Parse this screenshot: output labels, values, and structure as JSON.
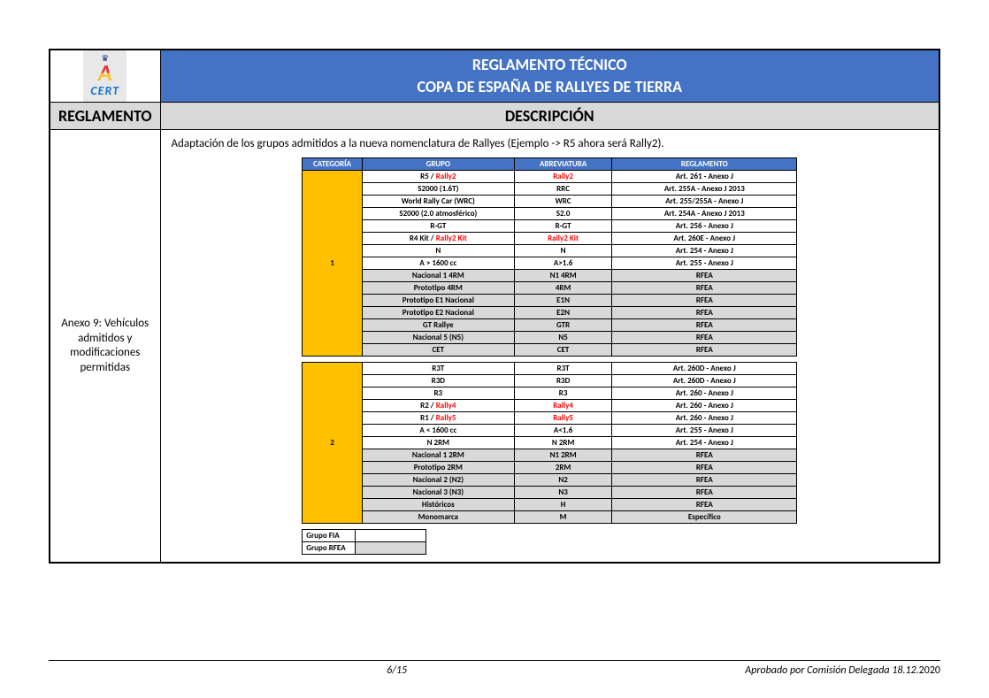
{
  "colors": {
    "header_bg": "#4472c4",
    "section_bg": "#d9d9d9",
    "cat_bg": "#ffc000",
    "shade_bg": "#d9d9d9",
    "red_text": "#ff0000",
    "border": "#000000",
    "white": "#ffffff"
  },
  "logo": {
    "crown": "♛",
    "letter": "A",
    "cert": "CERT"
  },
  "title_line1": "REGLAMENTO TÉCNICO",
  "title_line2": "COPA DE ESPAÑA DE RALLYES DE TIERRA",
  "col_reglamento": "REGLAMENTO",
  "col_descripcion": "DESCRIPCIÓN",
  "row_label": "Anexo 9: Vehículos admitidos y modificaciones permitidas",
  "intro": "Adaptación de los grupos admitidos a la nueva nomenclatura de Rallyes (Ejemplo -> R5 ahora será Rally2).",
  "inner_headers": {
    "categoria": "CATEGORÍA",
    "grupo": "GRUPO",
    "abreviatura": "ABREVIATURA",
    "reglamento": "REGLAMENTO"
  },
  "cat1": {
    "num": "1",
    "rows": [
      {
        "g": [
          "R5 / ",
          "Rally2"
        ],
        "a": "Rally2",
        "a_red": true,
        "r": "Art. 261 - Anexo J",
        "shade": false,
        "bold": true
      },
      {
        "g": [
          "S2000 (1.6T)"
        ],
        "a": "RRC",
        "r": "Art. 255A - Anexo J 2013",
        "shade": false,
        "bold": true
      },
      {
        "g": [
          "World Rally Car (WRC)"
        ],
        "a": "WRC",
        "r": "Art. 255/255A - Anexo J",
        "shade": false,
        "bold": true
      },
      {
        "g": [
          "S2000 (2.0 atmosférico)"
        ],
        "a": "S2.0",
        "r": "Art. 254A - Anexo J 2013",
        "shade": false,
        "bold": true
      },
      {
        "g": [
          "R-GT"
        ],
        "a": "R-GT",
        "r": "Art. 256 - Anexo J",
        "shade": false,
        "bold": true
      },
      {
        "g": [
          "R4 Kit / ",
          "Rally2 Kit"
        ],
        "a": "Rally2 Kit",
        "a_red": true,
        "r": "Art. 260E - Anexo J",
        "shade": false,
        "bold": true
      },
      {
        "g": [
          "N"
        ],
        "a": "N",
        "r": "Art. 254 - Anexo J",
        "shade": false,
        "bold": true
      },
      {
        "g": [
          "A > 1600 cc"
        ],
        "a": "A>1.6",
        "r": "Art. 255 - Anexo J",
        "shade": false,
        "bold": true
      },
      {
        "g": [
          "Nacional 1 4RM"
        ],
        "a": "N1 4RM",
        "r": "RFEA",
        "shade": true,
        "bold": true
      },
      {
        "g": [
          "Prototipo 4RM"
        ],
        "a": "4RM",
        "r": "RFEA",
        "shade": true,
        "bold": true
      },
      {
        "g": [
          "Prototipo E1 Nacional"
        ],
        "a": "E1N",
        "r": "RFEA",
        "shade": true,
        "bold": true
      },
      {
        "g": [
          "Prototipo E2 Nacional"
        ],
        "a": "E2N",
        "r": "RFEA",
        "shade": true,
        "bold": true
      },
      {
        "g": [
          "GT Rallye"
        ],
        "a": "GTR",
        "r": "RFEA",
        "shade": true,
        "bold": true
      },
      {
        "g": [
          "Nacional 5 (N5)"
        ],
        "a": "N5",
        "r": "RFEA",
        "shade": true,
        "bold": true
      },
      {
        "g": [
          "CET"
        ],
        "a": "CET",
        "r": "RFEA",
        "shade": true,
        "bold": true
      }
    ]
  },
  "cat2": {
    "num": "2",
    "rows": [
      {
        "g": [
          "R3T"
        ],
        "a": "R3T",
        "r": "Art. 260D - Anexo J",
        "shade": false,
        "bold": true
      },
      {
        "g": [
          "R3D"
        ],
        "a": "R3D",
        "r": "Art. 260D - Anexo J",
        "shade": false,
        "bold": true
      },
      {
        "g": [
          "R3"
        ],
        "a": "R3",
        "r": "Art. 260 - Anexo J",
        "shade": false,
        "bold": true
      },
      {
        "g": [
          "R2 / ",
          "Rally4"
        ],
        "a": "Rally4",
        "a_red": true,
        "r": "Art. 260 - Anexo J",
        "shade": false,
        "bold": true
      },
      {
        "g": [
          "R1 / ",
          "Rally5"
        ],
        "a": "Rally5",
        "a_red": true,
        "r": "Art. 260 - Anexo J",
        "shade": false,
        "bold": true
      },
      {
        "g": [
          "A < 1600 cc"
        ],
        "a": "A<1.6",
        "r": "Art. 255 - Anexo J",
        "shade": false,
        "bold": true
      },
      {
        "g": [
          "N 2RM"
        ],
        "a": "N 2RM",
        "r": "Art. 254 - Anexo J",
        "shade": false,
        "bold": true
      },
      {
        "g": [
          "Nacional 1 2RM"
        ],
        "a": "N1 2RM",
        "r": "RFEA",
        "shade": true,
        "bold": true
      },
      {
        "g": [
          "Prototipo 2RM"
        ],
        "a": "2RM",
        "r": "RFEA",
        "shade": true,
        "bold": true
      },
      {
        "g": [
          "Nacional 2 (N2)"
        ],
        "a": "N2",
        "r": "RFEA",
        "shade": true,
        "bold": true
      },
      {
        "g": [
          "Nacional 3 (N3)"
        ],
        "a": "N3",
        "r": "RFEA",
        "shade": true,
        "bold": true
      },
      {
        "g": [
          "Históricos"
        ],
        "a": "H",
        "r": "RFEA",
        "shade": true,
        "bold": true
      },
      {
        "g": [
          "Monomarca"
        ],
        "a": "M",
        "r": "Específico",
        "shade": true,
        "bold": true
      }
    ]
  },
  "legend": {
    "fia": "Grupo FIA",
    "rfea": "Grupo RFEA"
  },
  "footer": {
    "page": "6/15",
    "approval_prefix": "Aprobado por Comisión Delegada 18.12.",
    "approval_year": "2020"
  }
}
